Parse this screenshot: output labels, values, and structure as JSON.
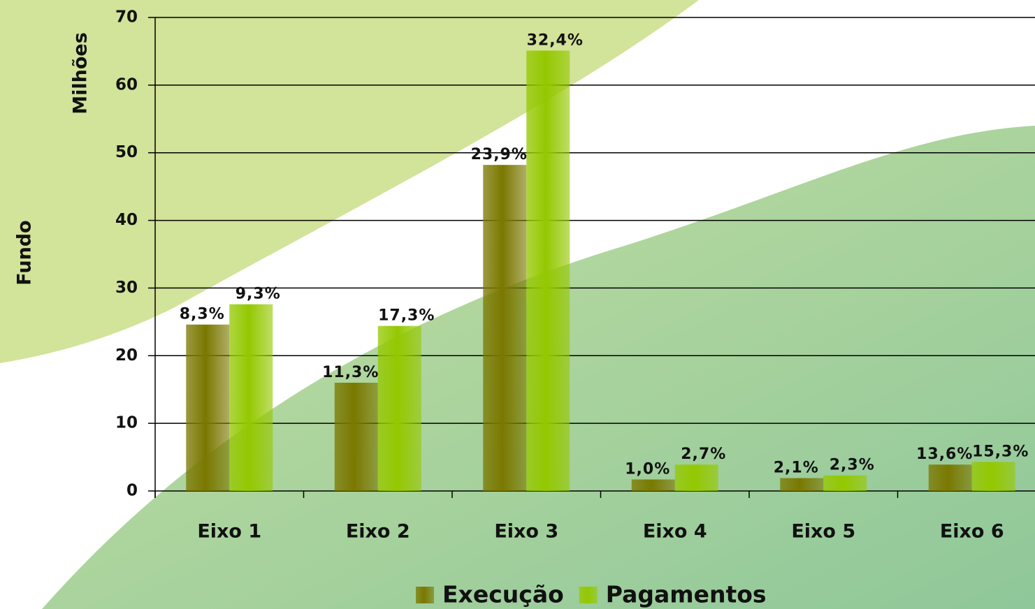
{
  "chart_data": {
    "type": "bar",
    "ylabel": "Fundo",
    "y_unit": "Milhões",
    "categories": [
      "Eixo 1",
      "Eixo 2",
      "Eixo 3",
      "Eixo 4",
      "Eixo 5",
      "Eixo 6"
    ],
    "series": [
      {
        "name": "Execução",
        "color": "#7a7800",
        "values": [
          24.6,
          16.0,
          48.2,
          1.7,
          1.9,
          3.9
        ],
        "share_labels": [
          "8,3%",
          "11,3%",
          "23,9%",
          "1,0%",
          "2,1%",
          "13,6%"
        ]
      },
      {
        "name": "Pagamentos",
        "color": "#94c800",
        "values": [
          27.6,
          24.4,
          65.1,
          3.9,
          2.3,
          4.3
        ],
        "share_labels": [
          "9,3%",
          "17,3%",
          "32,4%",
          "2,7%",
          "2,3%",
          "15,3%"
        ]
      }
    ],
    "ylim": [
      0,
      70
    ],
    "yticks": [
      0,
      10,
      20,
      30,
      40,
      50,
      60,
      70
    ],
    "grid": true,
    "legend": "bottom"
  }
}
